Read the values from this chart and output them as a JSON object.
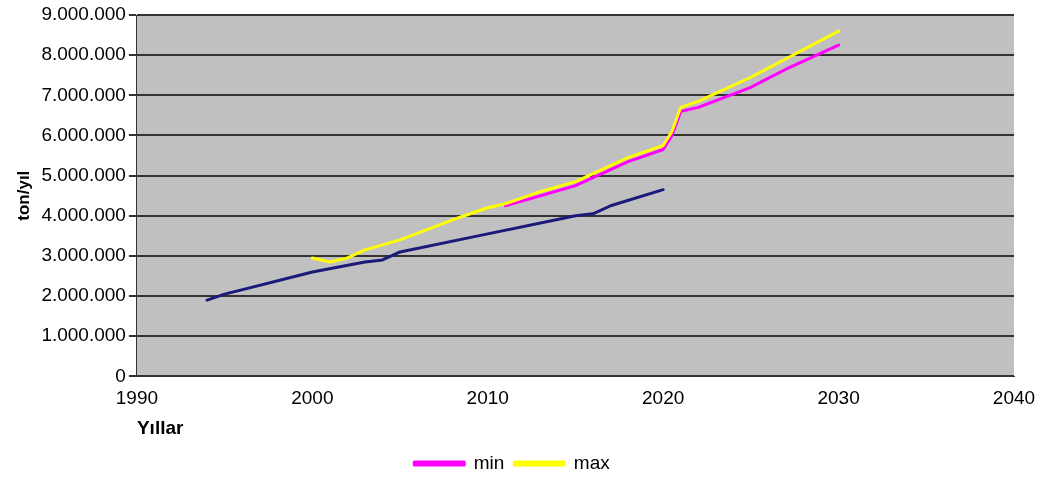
{
  "chart_data": {
    "type": "line",
    "xlabel": "Yıllar",
    "ylabel": "ton/yıl",
    "xlim": [
      1990,
      2040
    ],
    "xticks": [
      1990,
      2000,
      2010,
      2020,
      2030,
      2040
    ],
    "ylim": [
      0,
      9000000
    ],
    "yticks": [
      {
        "value": 0,
        "label": "0"
      },
      {
        "value": 1000000,
        "label": "1.000.000"
      },
      {
        "value": 2000000,
        "label": "2.000.000"
      },
      {
        "value": 3000000,
        "label": "3.000.000"
      },
      {
        "value": 4000000,
        "label": "4.000.000"
      },
      {
        "value": 5000000,
        "label": "5.000.000"
      },
      {
        "value": 6000000,
        "label": "6.000.000"
      },
      {
        "value": 7000000,
        "label": "7.000.000"
      },
      {
        "value": 8000000,
        "label": "8.000.000"
      },
      {
        "value": 9000000,
        "label": "9.000.000"
      }
    ],
    "grid": "y",
    "legend": "bottom",
    "marker": "none",
    "line_style": "solid",
    "series": [
      {
        "color": "#1a1a7a",
        "x": [
          1994,
          1995,
          2000,
          2003,
          2004,
          2005,
          2010,
          2015,
          2016,
          2017,
          2020
        ],
        "values": [
          1900000,
          2050000,
          2600000,
          2850000,
          2900000,
          3100000,
          3550000,
          4000000,
          4050000,
          4250000,
          4650000
        ]
      },
      {
        "name": "min",
        "color": "#ff00ff",
        "x": [
          2011,
          2013,
          2015,
          2018,
          2020,
          2020.5,
          2021,
          2022,
          2025,
          2027,
          2030
        ],
        "values": [
          4250000,
          4500000,
          4750000,
          5350000,
          5650000,
          6000000,
          6600000,
          6700000,
          7200000,
          7650000,
          8250000
        ]
      },
      {
        "name": "max",
        "color": "#ffff00",
        "x": [
          2000,
          2001,
          2002,
          2003,
          2005,
          2008,
          2010,
          2011,
          2013,
          2015,
          2018,
          2020,
          2020.5,
          2021,
          2022,
          2025,
          2030
        ],
        "values": [
          2950000,
          2850000,
          2950000,
          3150000,
          3400000,
          3900000,
          4200000,
          4300000,
          4600000,
          4850000,
          5450000,
          5750000,
          6100000,
          6700000,
          6850000,
          7450000,
          8600000
        ]
      }
    ]
  }
}
